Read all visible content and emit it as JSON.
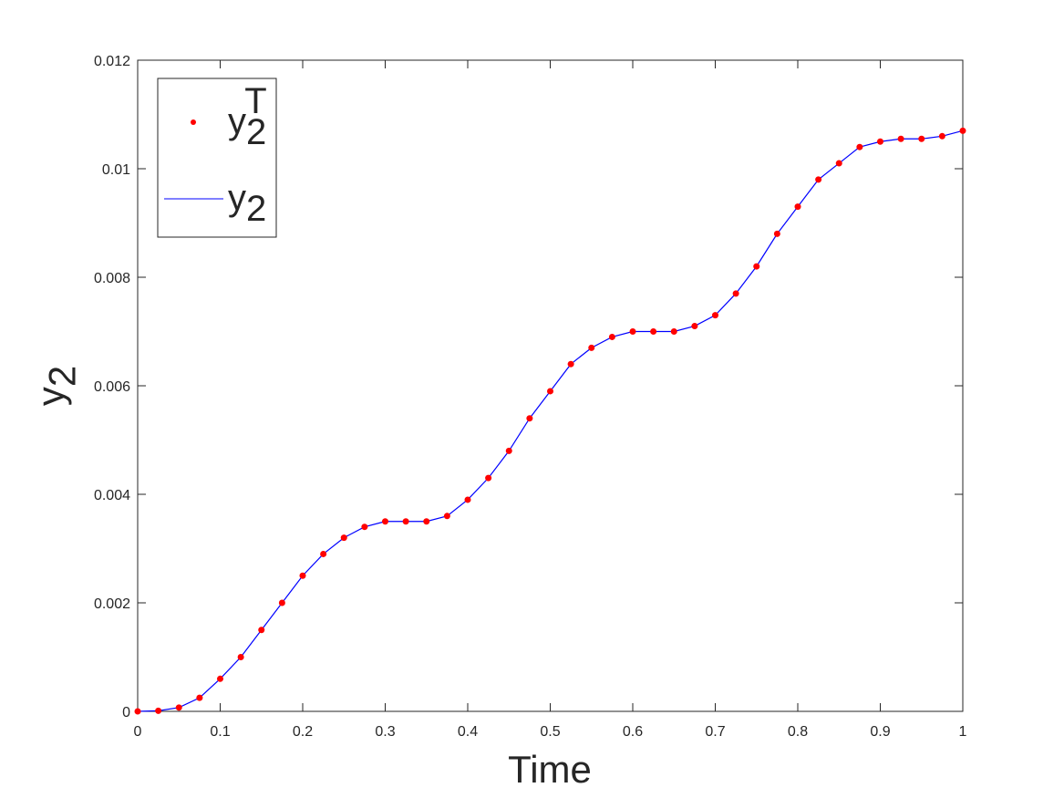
{
  "chart_data": {
    "type": "line",
    "xlabel": "Time",
    "ylabel": "y_2",
    "x": [
      0,
      0.025,
      0.05,
      0.075,
      0.1,
      0.125,
      0.15,
      0.175,
      0.2,
      0.225,
      0.25,
      0.275,
      0.3,
      0.325,
      0.35,
      0.375,
      0.4,
      0.425,
      0.45,
      0.475,
      0.5,
      0.525,
      0.55,
      0.575,
      0.6,
      0.625,
      0.65,
      0.675,
      0.7,
      0.725,
      0.75,
      0.775,
      0.8,
      0.825,
      0.85,
      0.875,
      0.9,
      0.925,
      0.95,
      0.975,
      1
    ],
    "series": [
      {
        "name": "y_2^T",
        "color": "#ff0000",
        "style": "dots",
        "values": [
          0,
          1e-05,
          7e-05,
          0.00025,
          0.0006,
          0.001,
          0.0015,
          0.002,
          0.0025,
          0.0029,
          0.0032,
          0.0034,
          0.0035,
          0.0035,
          0.0035,
          0.0036,
          0.0039,
          0.0043,
          0.0048,
          0.0054,
          0.0059,
          0.0064,
          0.0067,
          0.0069,
          0.007,
          0.007,
          0.007,
          0.0071,
          0.0073,
          0.0077,
          0.0082,
          0.0088,
          0.0093,
          0.0098,
          0.0101,
          0.0104,
          0.0105,
          0.01055,
          0.01055,
          0.0106,
          0.0107
        ]
      },
      {
        "name": "y_2",
        "color": "#0000ff",
        "style": "line",
        "values": [
          0,
          1e-05,
          7e-05,
          0.00025,
          0.0006,
          0.001,
          0.0015,
          0.002,
          0.0025,
          0.0029,
          0.0032,
          0.0034,
          0.0035,
          0.0035,
          0.0035,
          0.0036,
          0.0039,
          0.0043,
          0.0048,
          0.0054,
          0.0059,
          0.0064,
          0.0067,
          0.0069,
          0.007,
          0.007,
          0.007,
          0.0071,
          0.0073,
          0.0077,
          0.0082,
          0.0088,
          0.0093,
          0.0098,
          0.0101,
          0.0104,
          0.0105,
          0.01055,
          0.01055,
          0.0106,
          0.0107
        ]
      }
    ],
    "xlim": [
      0,
      1
    ],
    "xticks": [
      0,
      0.1,
      0.2,
      0.3,
      0.4,
      0.5,
      0.6,
      0.7,
      0.8,
      0.9,
      1
    ],
    "ylim": [
      0,
      0.012
    ],
    "yticks": [
      0,
      0.002,
      0.004,
      0.006,
      0.008,
      0.01,
      0.012
    ],
    "grid": false,
    "legend": "upper-left"
  }
}
